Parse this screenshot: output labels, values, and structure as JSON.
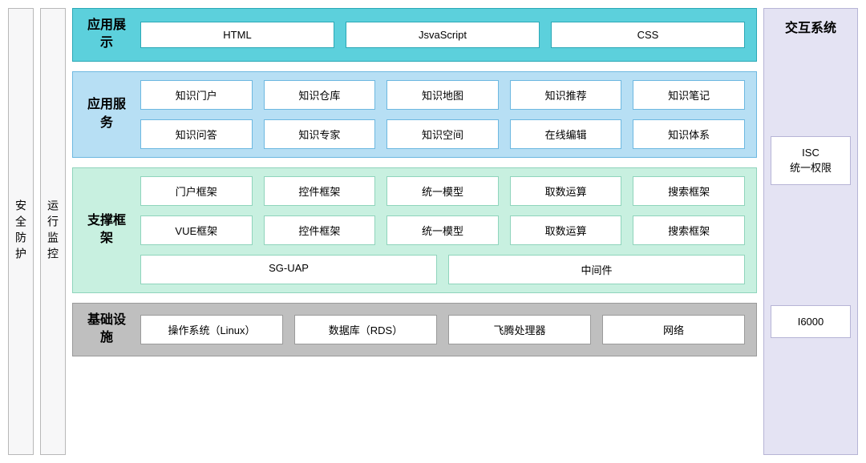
{
  "colors": {
    "vcol_bg": "#f7f7f8",
    "vcol_border": "#b8b8b8",
    "layer1_bg": "#5cd0dc",
    "layer1_border": "#2aa8b6",
    "layer2_bg": "#b7dff4",
    "layer2_border": "#6db8e0",
    "layer3_bg": "#c8f0e0",
    "layer3_border": "#8fd4bc",
    "layer4_bg": "#bfbfbf",
    "layer4_border": "#9a9a9a",
    "right_bg": "#e4e3f3",
    "right_border": "#b6b4d6",
    "cell_border_teal": "#2aa8b6",
    "cell_border_blue": "#6db8e0",
    "cell_border_green": "#8fd4bc",
    "cell_border_grey": "#9a9a9a",
    "cell_border_purple": "#b6b4d6"
  },
  "sidecols": {
    "security": "安全防护",
    "monitor": "运行监控"
  },
  "layers": {
    "presentation": {
      "title": "应用展示",
      "row1": [
        "HTML",
        "JsvaScript",
        "CSS"
      ]
    },
    "services": {
      "title": "应用服务",
      "row1": [
        "知识门户",
        "知识仓库",
        "知识地图",
        "知识推荐",
        "知识笔记"
      ],
      "row2": [
        "知识问答",
        "知识专家",
        "知识空间",
        "在线编辑",
        "知识体系"
      ]
    },
    "framework": {
      "title": "支撑框架",
      "row1": [
        "门户框架",
        "控件框架",
        "统一模型",
        "取数运算",
        "搜索框架"
      ],
      "row2": [
        "VUE框架",
        "控件框架",
        "统一模型",
        "取数运算",
        "搜索框架"
      ],
      "row3": [
        "SG-UAP",
        "中间件"
      ]
    },
    "infra": {
      "title": "基础设施",
      "row1": [
        "操作系统（Linux）",
        "数据库（RDS）",
        "飞腾处理器",
        "网络"
      ]
    }
  },
  "right": {
    "title": "交互系统",
    "item1_line1": "ISC",
    "item1_line2": "统一权限",
    "item2": "I6000"
  }
}
